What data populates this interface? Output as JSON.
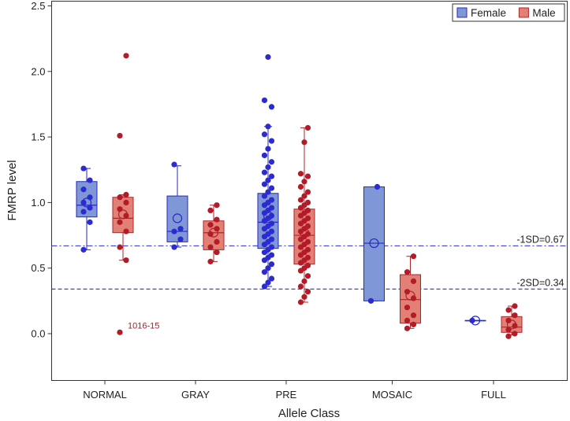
{
  "chart_data": {
    "type": "box",
    "xlabel": "Allele Class",
    "ylabel": "FMRP level",
    "ylim": [
      -0.3,
      2.5
    ],
    "yticks": [
      "0.0",
      "0.5",
      "1.0",
      "1.5",
      "2.0",
      "2.5"
    ],
    "categories": [
      "NORMAL",
      "GRAY",
      "PRE",
      "MOSAIC",
      "FULL"
    ],
    "legend": {
      "position": "top-right",
      "entries": [
        {
          "name": "Female",
          "color": "#7f97d6"
        },
        {
          "name": "Male",
          "color": "#e38076"
        }
      ]
    },
    "colors": {
      "Female": {
        "fill": "#7f97d6",
        "stroke": "#2727c2",
        "point": "#2b2bd0"
      },
      "Male": {
        "fill": "#e38076",
        "stroke": "#b0232a",
        "point": "#b31b28"
      }
    },
    "reference_lines": [
      {
        "label": "-1SD=0.67",
        "y": 0.67,
        "style": "dash-dot"
      },
      {
        "label": "-2SD=0.34",
        "y": 0.34,
        "style": "dashed"
      }
    ],
    "annotations": [
      {
        "text": "1016-15",
        "category": "NORMAL",
        "series": "Male",
        "y": 0.01
      }
    ],
    "series": [
      {
        "name": "Female",
        "boxes": [
          {
            "category": "NORMAL",
            "min": 0.64,
            "q1": 0.89,
            "median": 0.98,
            "q3": 1.16,
            "max": 1.26,
            "mean": 1.0,
            "points": [
              0.64,
              0.85,
              0.93,
              0.96,
              1.0,
              1.04,
              1.1,
              1.17,
              1.26
            ]
          },
          {
            "category": "GRAY",
            "min": 0.66,
            "q1": 0.7,
            "median": 0.78,
            "q3": 1.05,
            "max": 1.28,
            "mean": 0.88,
            "points": [
              0.66,
              0.72,
              0.78,
              0.8,
              1.29
            ]
          },
          {
            "category": "PRE",
            "min": 0.36,
            "q1": 0.65,
            "median": 0.85,
            "q3": 1.07,
            "max": 1.58,
            "mean": 0.9,
            "points": [
              0.36,
              0.39,
              0.42,
              0.47,
              0.5,
              0.53,
              0.56,
              0.58,
              0.6,
              0.62,
              0.64,
              0.66,
              0.68,
              0.7,
              0.72,
              0.74,
              0.76,
              0.78,
              0.8,
              0.82,
              0.84,
              0.86,
              0.88,
              0.9,
              0.92,
              0.94,
              0.96,
              0.98,
              1.0,
              1.02,
              1.05,
              1.08,
              1.11,
              1.14,
              1.17,
              1.2,
              1.23,
              1.27,
              1.31,
              1.36,
              1.41,
              1.47,
              1.52,
              1.58,
              1.73,
              1.78,
              2.11
            ]
          },
          {
            "category": "MOSAIC",
            "min": 0.25,
            "q1": 0.25,
            "median": 0.69,
            "q3": 1.12,
            "max": 1.12,
            "mean": 0.69,
            "points": [
              0.25,
              1.12
            ]
          },
          {
            "category": "FULL",
            "min": 0.1,
            "q1": 0.1,
            "median": 0.1,
            "q3": 0.1,
            "max": 0.1,
            "mean": 0.1,
            "points": [
              0.1
            ]
          }
        ]
      },
      {
        "name": "Male",
        "boxes": [
          {
            "category": "NORMAL",
            "min": 0.56,
            "q1": 0.77,
            "median": 0.88,
            "q3": 1.04,
            "max": 1.06,
            "mean": 0.91,
            "points": [
              0.01,
              0.56,
              0.66,
              0.78,
              0.85,
              0.9,
              0.95,
              1.0,
              1.04,
              1.06,
              1.51,
              2.12
            ]
          },
          {
            "category": "GRAY",
            "min": 0.55,
            "q1": 0.64,
            "median": 0.77,
            "q3": 0.86,
            "max": 0.98,
            "mean": 0.77,
            "points": [
              0.55,
              0.62,
              0.66,
              0.7,
              0.76,
              0.8,
              0.83,
              0.87,
              0.94,
              0.98
            ]
          },
          {
            "category": "PRE",
            "min": 0.24,
            "q1": 0.53,
            "median": 0.75,
            "q3": 0.95,
            "max": 1.57,
            "mean": 0.77,
            "points": [
              0.24,
              0.28,
              0.32,
              0.36,
              0.4,
              0.44,
              0.48,
              0.5,
              0.52,
              0.54,
              0.56,
              0.58,
              0.6,
              0.62,
              0.64,
              0.66,
              0.68,
              0.7,
              0.72,
              0.74,
              0.76,
              0.78,
              0.8,
              0.82,
              0.84,
              0.86,
              0.88,
              0.9,
              0.92,
              0.94,
              0.96,
              0.98,
              1.0,
              1.02,
              1.05,
              1.08,
              1.12,
              1.16,
              1.2,
              1.22,
              1.46,
              1.57
            ]
          },
          {
            "category": "MOSAIC",
            "min": 0.04,
            "q1": 0.08,
            "median": 0.26,
            "q3": 0.45,
            "max": 0.59,
            "mean": 0.29,
            "points": [
              0.04,
              0.07,
              0.1,
              0.14,
              0.2,
              0.27,
              0.32,
              0.4,
              0.47,
              0.59
            ]
          },
          {
            "category": "FULL",
            "min": -0.01,
            "q1": 0.01,
            "median": 0.05,
            "q3": 0.13,
            "max": 0.21,
            "mean": 0.07,
            "points": [
              -0.02,
              0.0,
              0.03,
              0.06,
              0.1,
              0.14,
              0.18,
              0.21
            ]
          }
        ]
      }
    ]
  }
}
